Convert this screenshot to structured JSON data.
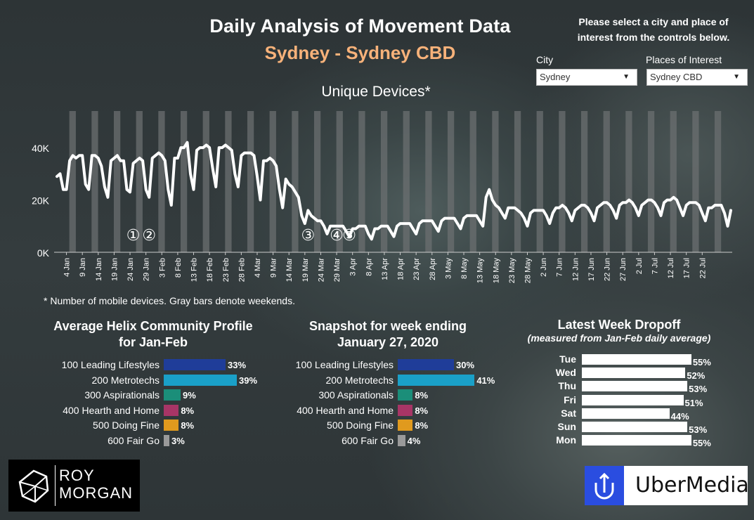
{
  "header": {
    "title": "Daily Analysis of Movement Data",
    "subtitle": "Sydney - Sydney CBD",
    "instructions": "Please select a city and place of interest from the controls below."
  },
  "controls": {
    "city": {
      "label": "City",
      "value": "Sydney"
    },
    "place": {
      "label": "Places of Interest",
      "value": "Sydney CBD"
    }
  },
  "colors": {
    "subtitle": "#f7b27a",
    "weekend_bar": "#6b6f70",
    "line": "#ffffff",
    "helix": [
      "#1f3d99",
      "#1aa0c8",
      "#1b8e79",
      "#a83566",
      "#e09a1e",
      "#9a9a9a"
    ],
    "uber_blue": "#2a4de0"
  },
  "chart_data": [
    {
      "type": "line",
      "title": "Unique Devices*",
      "ylabel": "",
      "ylim": [
        0,
        54000
      ],
      "yticks": [
        {
          "value": 0,
          "label": "0K"
        },
        {
          "value": 20000,
          "label": "20K"
        },
        {
          "value": 40000,
          "label": "40K"
        }
      ],
      "x_tick_labels": [
        "4 Jan",
        "9 Jan",
        "14 Jan",
        "19 Jan",
        "24 Jan",
        "29 Jan",
        "3 Feb",
        "8 Feb",
        "13 Feb",
        "18 Feb",
        "23 Feb",
        "28 Feb",
        "4 Mar",
        "9 Mar",
        "14 Mar",
        "19 Mar",
        "24 Mar",
        "29 Mar",
        "3 Apr",
        "8 Apr",
        "13 Apr",
        "18 Apr",
        "23 Apr",
        "28 Apr",
        "3 May",
        "8 May",
        "13 May",
        "18 May",
        "23 May",
        "28 May",
        "2 Jun",
        "7 Jun",
        "12 Jun",
        "17 Jun",
        "22 Jun",
        "27 Jun",
        "2 Jul",
        "7 Jul",
        "12 Jul",
        "17 Jul",
        "22 Jul"
      ],
      "days": 209,
      "weekend_bars": "Saturdays and Sundays shown as gray bars",
      "annotations": [
        {
          "label": "①",
          "day_index": 24
        },
        {
          "label": "②",
          "day_index": 29
        },
        {
          "label": "③",
          "day_index": 79
        },
        {
          "label": "④",
          "day_index": 88
        },
        {
          "label": "⑤",
          "day_index": 92
        }
      ],
      "series": [
        {
          "name": "Unique Devices",
          "values": [
            29000,
            30000,
            24000,
            24000,
            35000,
            37000,
            36000,
            37000,
            37000,
            26000,
            24000,
            37000,
            37000,
            36000,
            33000,
            25000,
            21000,
            35000,
            36000,
            37000,
            35000,
            35000,
            24000,
            23000,
            34000,
            35000,
            36000,
            35000,
            24000,
            21000,
            36000,
            37000,
            38000,
            37000,
            35000,
            24000,
            18000,
            36000,
            36000,
            40000,
            40000,
            42000,
            30000,
            24000,
            39000,
            40000,
            40000,
            41000,
            40000,
            32000,
            25000,
            40000,
            40000,
            41000,
            40000,
            39000,
            30000,
            25000,
            37000,
            38000,
            38000,
            38000,
            37000,
            29000,
            20000,
            35000,
            35000,
            36000,
            35000,
            33000,
            24000,
            17000,
            28000,
            26000,
            25000,
            23000,
            21000,
            14000,
            11000,
            16000,
            14000,
            13000,
            12000,
            12000,
            10000,
            7000,
            10000,
            10000,
            10000,
            10000,
            10000,
            8000,
            6000,
            9000,
            9000,
            10000,
            10000,
            10000,
            7000,
            5000,
            9000,
            9000,
            10000,
            10000,
            10000,
            8000,
            6000,
            10000,
            11000,
            11000,
            11000,
            11000,
            9000,
            7000,
            11000,
            12000,
            12000,
            12000,
            12000,
            10000,
            8000,
            12000,
            13000,
            13000,
            13000,
            13000,
            11000,
            9000,
            13000,
            14000,
            14000,
            14000,
            14000,
            12000,
            10000,
            21000,
            24000,
            20000,
            18000,
            17000,
            15000,
            13000,
            17000,
            17000,
            17000,
            16000,
            15000,
            13000,
            10000,
            15000,
            16000,
            16000,
            16000,
            16000,
            14000,
            11000,
            15000,
            17000,
            17000,
            18000,
            17000,
            15000,
            12000,
            16000,
            17000,
            18000,
            18000,
            17000,
            15000,
            12000,
            17000,
            18000,
            19000,
            19000,
            18000,
            16000,
            13000,
            18000,
            19000,
            19000,
            20000,
            19000,
            17000,
            14000,
            18000,
            19000,
            20000,
            20000,
            19000,
            17000,
            14000,
            19000,
            20000,
            20000,
            21000,
            20000,
            17000,
            14000,
            18000,
            19000,
            19000,
            19000,
            18000,
            15000,
            12000,
            17000,
            17000,
            18000,
            18000,
            18000,
            15000,
            10000,
            16000
          ]
        }
      ]
    },
    {
      "type": "bar",
      "title": "Average Helix Community Profile for Jan-Feb",
      "title_lines": [
        "Average Helix Community Profile",
        "for Jan-Feb"
      ],
      "categories": [
        "100 Leading Lifestyles",
        "200 Metrotechs",
        "300 Aspirationals",
        "400 Hearth and Home",
        "500 Doing Fine",
        "600 Fair Go"
      ],
      "values": [
        33,
        39,
        9,
        8,
        8,
        3
      ],
      "value_labels": [
        "33%",
        "39%",
        "9%",
        "8%",
        "8%",
        "3%"
      ],
      "xlim": [
        0,
        42
      ]
    },
    {
      "type": "bar",
      "title": "Snapshot for week ending January 27, 2020",
      "title_lines": [
        "Snapshot for week ending",
        "January 27, 2020"
      ],
      "categories": [
        "100 Leading Lifestyles",
        "200 Metrotechs",
        "300 Aspirationals",
        "400 Hearth and Home",
        "500 Doing Fine",
        "600 Fair Go"
      ],
      "values": [
        30,
        41,
        8,
        8,
        8,
        4
      ],
      "value_labels": [
        "30%",
        "41%",
        "8%",
        "8%",
        "8%",
        "4%"
      ],
      "xlim": [
        0,
        42
      ]
    },
    {
      "type": "bar",
      "title": "Latest Week Dropoff",
      "subtitle": "(measured from Jan-Feb daily average)",
      "categories": [
        "Tue",
        "Wed",
        "Thu",
        "Fri",
        "Sat",
        "Sun",
        "Mon"
      ],
      "values": [
        55,
        52,
        53,
        51,
        44,
        53,
        55
      ],
      "value_labels": [
        "55%",
        "52%",
        "53%",
        "51%",
        "44%",
        "53%",
        "55%"
      ],
      "xlim": [
        0,
        60
      ]
    }
  ],
  "footnote": "* Number of mobile devices. Gray bars denote weekends.",
  "logos": {
    "roy_morgan": {
      "line1": "ROY",
      "line2": "MORGAN"
    },
    "ubermedia": {
      "text": "UberMedia"
    }
  }
}
